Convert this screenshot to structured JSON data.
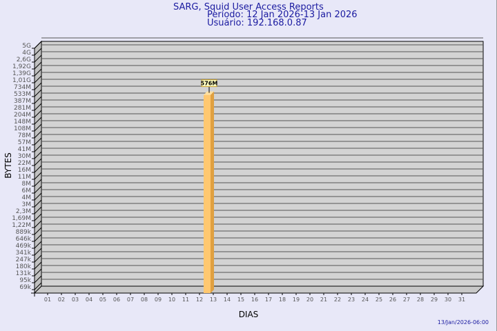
{
  "chart_data": {
    "type": "bar",
    "title": "SARG, Squid User Access Reports",
    "subtitle": [
      "Período: 12 Jan 2026-13 Jan 2026",
      "Usuário: 192.168.0.87"
    ],
    "xlabel": "DIAS",
    "ylabel": "BYTES",
    "footer": "13/Jan/2026-06:00",
    "y_scale": "log",
    "y_ticks": [
      "69k",
      "95k",
      "131k",
      "180k",
      "247k",
      "341k",
      "469k",
      "646k",
      "889k",
      "1,22M",
      "1,69M",
      "2,3M",
      "3M",
      "4M",
      "6M",
      "8M",
      "11M",
      "16M",
      "22M",
      "30M",
      "41M",
      "57M",
      "78M",
      "108M",
      "148M",
      "204M",
      "281M",
      "387M",
      "533M",
      "734M",
      "1,01G",
      "1,39G",
      "1,92G",
      "2,6G",
      "4G",
      "5G"
    ],
    "categories": [
      "01",
      "02",
      "03",
      "04",
      "05",
      "06",
      "07",
      "08",
      "09",
      "10",
      "11",
      "12",
      "13",
      "14",
      "15",
      "16",
      "17",
      "18",
      "19",
      "20",
      "21",
      "22",
      "23",
      "24",
      "25",
      "26",
      "27",
      "28",
      "29",
      "30",
      "31"
    ],
    "values": [
      0,
      0,
      0,
      0,
      0,
      0,
      0,
      0,
      0,
      0,
      0,
      576000000,
      0,
      0,
      0,
      0,
      0,
      0,
      0,
      0,
      0,
      0,
      0,
      0,
      0,
      0,
      0,
      0,
      0,
      0,
      0
    ],
    "data_labels": {
      "12": "576M"
    },
    "grid": true,
    "colors": {
      "bar": "#ffc870",
      "bar_side": "#e0a040",
      "wall": "#d3d3d3",
      "title": "#1a1aa0"
    }
  }
}
